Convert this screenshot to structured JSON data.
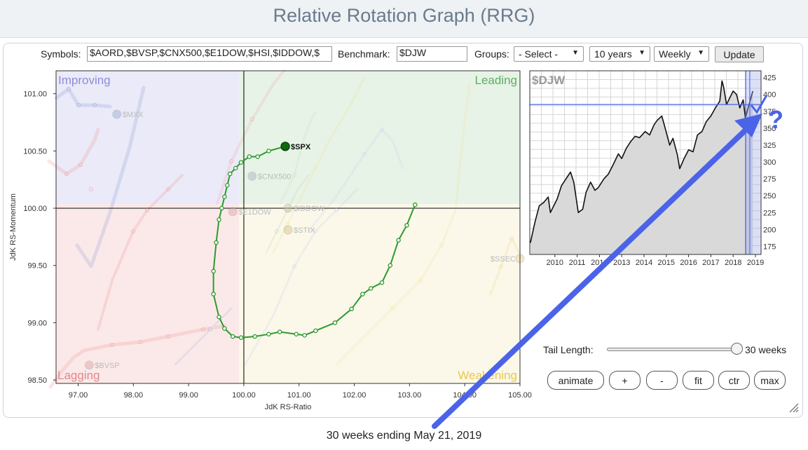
{
  "header": {
    "title": "Relative Rotation Graph (RRG)"
  },
  "controls": {
    "symbols_label": "Symbols:",
    "symbols_value": "$AORD,$BVSP,$CNX500,$E1DOW,$HSI,$IDDOW,$",
    "benchmark_label": "Benchmark:",
    "benchmark_value": "$DJW",
    "groups_label": "Groups:",
    "groups_value": "- Select -",
    "period_value": "10 years",
    "interval_value": "Weekly",
    "update_label": "Update"
  },
  "quadrants": {
    "improving": "Improving",
    "leading": "Leading",
    "weakening": "Weakening",
    "lagging": "Lagging"
  },
  "colors": {
    "improving_bg": "#eaeaf9",
    "leading_bg": "#e6f3e6",
    "weakening_bg": "#fbf8ea",
    "lagging_bg": "#fbe9e9",
    "improving_text": "#8c8ed8",
    "leading_text": "#5fae62",
    "weakening_text": "#e8c84a",
    "lagging_text": "#e48888",
    "spx_tail": "#2e9a2e",
    "arrow": "#4a63e8"
  },
  "chart_data": [
    {
      "type": "scatter",
      "xlabel": "JdK RS-Ratio",
      "ylabel": "JdK RS-Momentum",
      "xlim": [
        96.6,
        105.0
      ],
      "ylim": [
        98.47,
        101.2
      ],
      "x_ticks": [
        "97.00",
        "98.00",
        "99.00",
        "100.00",
        "101.00",
        "102.00",
        "103.00",
        "104.00",
        "105.00"
      ],
      "y_ticks": [
        "101.00",
        "100.50",
        "100.00",
        "99.50",
        "99.00",
        "98.50"
      ],
      "series": [
        {
          "name": "$SPX",
          "highlight": true,
          "color": "#2e9a2e",
          "x": [
            103.1,
            102.95,
            102.8,
            102.65,
            102.5,
            102.3,
            102.15,
            101.95,
            101.65,
            101.3,
            101.1,
            100.95,
            100.65,
            100.45,
            100.2,
            99.95,
            99.8,
            99.65,
            99.55,
            99.45,
            99.45,
            99.5,
            99.55,
            99.6,
            99.65,
            99.7,
            99.75,
            99.85,
            99.95,
            100.1,
            100.25,
            100.45,
            100.75
          ],
          "y": [
            100.03,
            99.85,
            99.72,
            99.5,
            99.35,
            99.3,
            99.25,
            99.12,
            99.0,
            98.93,
            98.89,
            98.9,
            98.92,
            98.9,
            98.88,
            98.87,
            98.88,
            98.95,
            99.05,
            99.25,
            99.45,
            99.7,
            99.9,
            100.0,
            100.1,
            100.2,
            100.3,
            100.35,
            100.4,
            100.45,
            100.45,
            100.5,
            100.54
          ]
        },
        {
          "name": "$CNX500",
          "highlight": false,
          "color": "#aab0c0",
          "x": [
            100.15
          ],
          "y": [
            100.28
          ]
        },
        {
          "name": "$E1DOW",
          "highlight": false,
          "color": "#e0a0a0",
          "x": [
            99.8
          ],
          "y": [
            99.97
          ]
        },
        {
          "name": "$IDDOW",
          "highlight": false,
          "color": "#c8c8a0",
          "x": [
            100.8
          ],
          "y": [
            100.0
          ]
        },
        {
          "name": "$STIX",
          "highlight": false,
          "color": "#d8c080",
          "x": [
            100.8
          ],
          "y": [
            99.81
          ]
        },
        {
          "name": "$SSEC",
          "highlight": false,
          "color": "#e8d090",
          "x": [
            105.0
          ],
          "y": [
            99.56
          ]
        },
        {
          "name": "$MXX",
          "highlight": false,
          "color": "#9aa6d8",
          "x": [
            97.7
          ],
          "y": [
            100.82
          ]
        },
        {
          "name": "$BVSP",
          "highlight": false,
          "color": "#e0a0a0",
          "x": [
            97.2
          ],
          "y": [
            98.63
          ]
        }
      ]
    },
    {
      "type": "area",
      "title": "$DJW",
      "x_ticks": [
        "2010",
        "2011",
        "2012",
        "2013",
        "2014",
        "2015",
        "2016",
        "2017",
        "2018",
        "2019"
      ],
      "y_ticks": [
        "425",
        "400",
        "375",
        "350",
        "325",
        "300",
        "275",
        "250",
        "225",
        "200",
        "175"
      ],
      "ylim": [
        163,
        435
      ],
      "x": [
        2009.4,
        2009.6,
        2009.8,
        2010.0,
        2010.2,
        2010.3,
        2010.45,
        2010.6,
        2010.8,
        2011.0,
        2011.2,
        2011.35,
        2011.55,
        2011.75,
        2011.9,
        2012.1,
        2012.3,
        2012.45,
        2012.7,
        2012.9,
        2013.1,
        2013.35,
        2013.5,
        2013.7,
        2013.9,
        2014.1,
        2014.3,
        2014.55,
        2014.75,
        2014.95,
        2015.1,
        2015.3,
        2015.45,
        2015.65,
        2015.8,
        2016.0,
        2016.1,
        2016.3,
        2016.5,
        2016.7,
        2016.9,
        2017.1,
        2017.3,
        2017.5,
        2017.7,
        2017.9,
        2018.0,
        2018.08,
        2018.2,
        2018.35,
        2018.5,
        2018.65,
        2018.8,
        2018.95,
        2019.05,
        2019.15,
        2019.3,
        2019.38
      ],
      "values": [
        180,
        210,
        235,
        240,
        248,
        225,
        235,
        245,
        265,
        275,
        285,
        270,
        225,
        230,
        255,
        270,
        258,
        262,
        275,
        282,
        295,
        312,
        305,
        320,
        330,
        338,
        336,
        345,
        340,
        355,
        362,
        368,
        350,
        325,
        335,
        310,
        290,
        305,
        318,
        315,
        340,
        345,
        360,
        368,
        380,
        390,
        420,
        410,
        385,
        395,
        405,
        400,
        380,
        392,
        365,
        378,
        395,
        405
      ],
      "crosshair_value": "385"
    }
  ],
  "tail": {
    "label": "Tail Length:",
    "value": 30,
    "value_label": "30 weeks"
  },
  "buttons": {
    "animate": "animate",
    "plus": "+",
    "minus": "-",
    "fit": "fit",
    "ctr": "ctr",
    "max": "max"
  },
  "annotation": {
    "question_mark": "?"
  },
  "footer": {
    "caption": "30 weeks ending May 21, 2019"
  }
}
